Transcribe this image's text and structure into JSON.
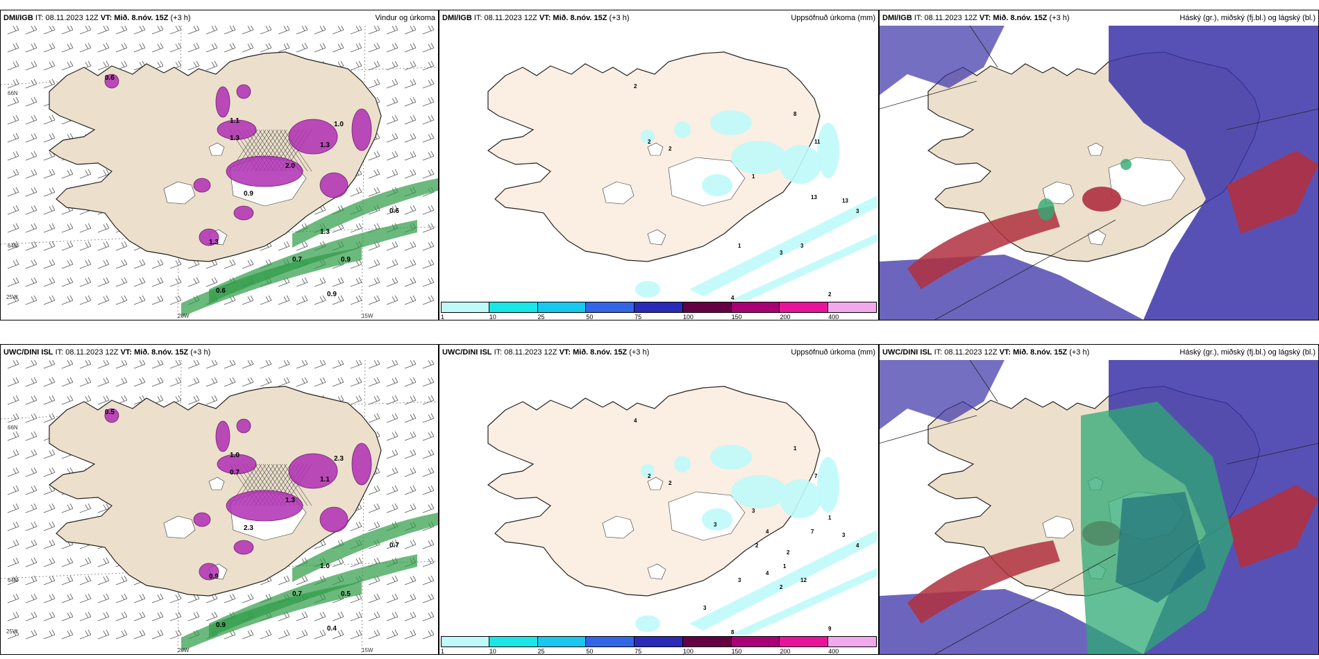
{
  "panels": [
    {
      "model": "DMI/IGB",
      "it_label": "IT:",
      "it": "08.11.2023 12Z",
      "vt_label": "VT: Mið. 8.nóv. 15Z",
      "lead": "(+3 h)",
      "title": "Vindur og úrkoma",
      "kind": "wind"
    },
    {
      "model": "DMI/IGB",
      "it_label": "IT:",
      "it": "08.11.2023 12Z",
      "vt_label": "VT: Mið. 8.nóv. 15Z",
      "lead": "(+3 h)",
      "title": "Uppsöfnuð úrkoma (mm)",
      "kind": "precip"
    },
    {
      "model": "DMI/IGB",
      "it_label": "IT:",
      "it": "08.11.2023 12Z",
      "vt_label": "VT: Mið. 8.nóv. 15Z",
      "lead": "(+3 h)",
      "title": "Háský (gr.), miðský (fj.bl.) og lágský (bl.)",
      "kind": "cloud"
    },
    {
      "model": "UWC/DINI ISL",
      "it_label": "IT:",
      "it": "08.11.2023 12Z",
      "vt_label": "VT: Mið. 8.nóv. 15Z",
      "lead": "(+3 h)",
      "title": "",
      "kind": "wind"
    },
    {
      "model": "UWC/DINI ISL",
      "it_label": "IT:",
      "it": "08.11.2023 12Z",
      "vt_label": "VT: Mið. 8.nóv. 15Z",
      "lead": "(+3 h)",
      "title": "Uppsöfnuð úrkoma (mm)",
      "kind": "precip"
    },
    {
      "model": "UWC/DINI ISL",
      "it_label": "IT:",
      "it": "08.11.2023 12Z",
      "vt_label": "VT: Mið. 8.nóv. 15Z",
      "lead": "(+3 h)",
      "title": "Háský (gr.), miðský (fj.bl.) og lágský (bl.)",
      "kind": "cloud"
    }
  ],
  "axis_labels": {
    "lon_20": "20W",
    "lon_15": "15W",
    "lat_66": "66N",
    "lat_64": "64N",
    "lon_25": "25W"
  },
  "colorbar": {
    "levels": [
      "1",
      "10",
      "25",
      "50",
      "75",
      "100",
      "150",
      "200",
      "400"
    ],
    "colors": [
      "#bff9f9",
      "#19e6e6",
      "#18c8ef",
      "#3366e6",
      "#2a2ab8",
      "#660044",
      "#aa0077",
      "#e8139b",
      "#f2a8ec"
    ]
  },
  "wind_values_top": [
    "0.6",
    "1.1",
    "1.0",
    "1.3",
    "1.3",
    "2.0",
    "0.6",
    "0.9",
    "0.9",
    "1.3",
    "0.7",
    "0.6",
    "1.3",
    "0.9"
  ],
  "wind_values_bottom": [
    "0.5",
    "1.0",
    "2.3",
    "0.7",
    "1.1",
    "1.3",
    "0.7",
    "0.5",
    "0.4",
    "1.0",
    "0.7",
    "0.9",
    "0.9",
    "2.3"
  ],
  "precip_values_top": [
    "2",
    "2",
    "2",
    "8",
    "11",
    "1",
    "13",
    "3",
    "3",
    "3",
    "4",
    "2",
    "13",
    "1"
  ],
  "precip_values_bottom": [
    "4",
    "2",
    "2",
    "1",
    "7",
    "3",
    "3",
    "2",
    "12",
    "4",
    "8",
    "9",
    "7",
    "3",
    "4",
    "2",
    "1",
    "3",
    "3",
    "4",
    "2",
    "1"
  ],
  "colors": {
    "land": "#ece0cc",
    "precip_land": "#fbeee2",
    "sea_pattern": "#555555",
    "cloud_high": "#3b32a8",
    "cloud_mid": "#b03040",
    "cloud_low": "#2faa74",
    "green": "#2e9b46",
    "magenta": "#b02fb4"
  }
}
